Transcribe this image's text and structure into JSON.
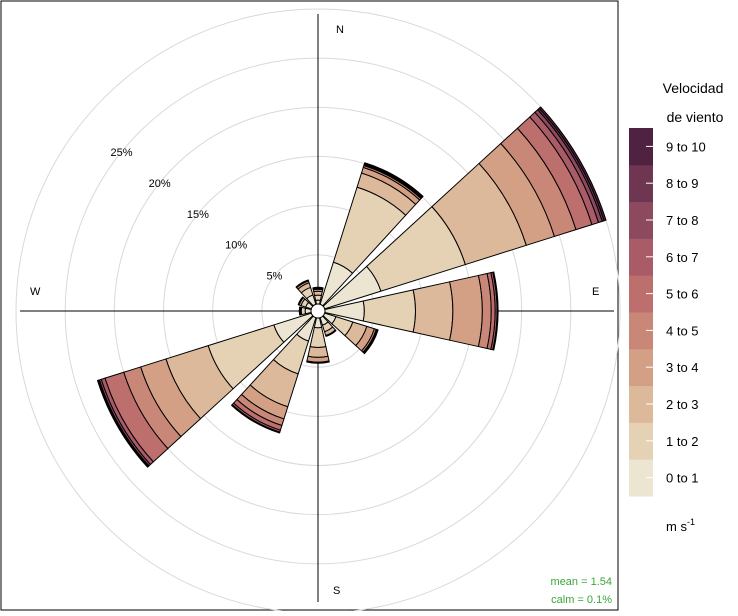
{
  "chart_data": {
    "type": "windrose",
    "directions_deg": [
      0,
      30,
      60,
      90,
      120,
      150,
      180,
      210,
      240,
      270,
      300,
      330
    ],
    "direction_labels": {
      "north": "N",
      "east": "E",
      "south": "S",
      "west": "W"
    },
    "radial_ticks": [
      {
        "value": 5,
        "label": "5%"
      },
      {
        "value": 10,
        "label": "10%"
      },
      {
        "value": 15,
        "label": "15%"
      },
      {
        "value": 20,
        "label": "20%"
      },
      {
        "value": 25,
        "label": "25%"
      },
      {
        "value": 30,
        "label": ""
      }
    ],
    "speed_bins": [
      "0 to 1",
      "1 to 2",
      "2 to 3",
      "3 to 4",
      "4 to 5",
      "5 to 6",
      "6 to 7",
      "7 to 8",
      "8 to 9",
      "9 to 10"
    ],
    "colors": [
      "#ece5d2",
      "#e5d2b5",
      "#dcb99b",
      "#d3a085",
      "#c98877",
      "#bd6f6d",
      "#a95c68",
      "#8d4a5f",
      "#6e3650",
      "#4e2240"
    ],
    "cumulative_percent": {
      "0": [
        0.4,
        0.9,
        1.3,
        1.5,
        1.6,
        1.7,
        1.7,
        1.7,
        1.7,
        1.7
      ],
      "30": [
        4.5,
        12.5,
        14.0,
        14.6,
        14.8,
        14.9,
        15.0,
        15.1,
        15.1,
        15.1
      ],
      "60": [
        6.0,
        15.0,
        21.5,
        24.5,
        26.8,
        28.5,
        29.2,
        29.6,
        29.8,
        30.0
      ],
      "90": [
        4.0,
        9.2,
        13.0,
        16.0,
        16.9,
        17.3,
        17.5,
        17.6,
        17.6,
        17.6
      ],
      "120": [
        1.2,
        3.0,
        4.5,
        5.3,
        5.5,
        5.6,
        5.7,
        5.7,
        5.7,
        5.7
      ],
      "150": [
        0.8,
        1.5,
        1.9,
        2.0,
        2.0,
        2.0,
        2.0,
        2.0,
        2.0,
        2.0
      ],
      "180": [
        1.0,
        3.0,
        4.0,
        4.5,
        4.6,
        4.6,
        4.6,
        4.6,
        4.6,
        4.6
      ],
      "210": [
        2.5,
        6.0,
        9.5,
        10.8,
        11.5,
        12.0,
        12.2,
        12.3,
        12.3,
        12.3
      ],
      "240": [
        4.0,
        11.0,
        15.5,
        18.2,
        20.0,
        22.0,
        22.4,
        22.6,
        22.7,
        22.8
      ],
      "270": [
        0.6,
        1.0,
        1.1,
        1.2,
        1.2,
        1.2,
        1.2,
        1.2,
        1.2,
        1.2
      ],
      "300": [
        0.6,
        1.1,
        1.3,
        1.4,
        1.4,
        1.4,
        1.4,
        1.4,
        1.4,
        1.4
      ],
      "330": [
        1.0,
        1.8,
        2.3,
        2.5,
        2.6,
        2.6,
        2.6,
        2.6,
        2.6,
        2.6
      ]
    },
    "legend": {
      "title_line1": "Velocidad",
      "title_line2": "de viento",
      "unit_base": "m s",
      "unit_exp": "-1"
    },
    "stats": {
      "mean": "mean = 1.54",
      "calm": "calm = 0.1%"
    }
  }
}
